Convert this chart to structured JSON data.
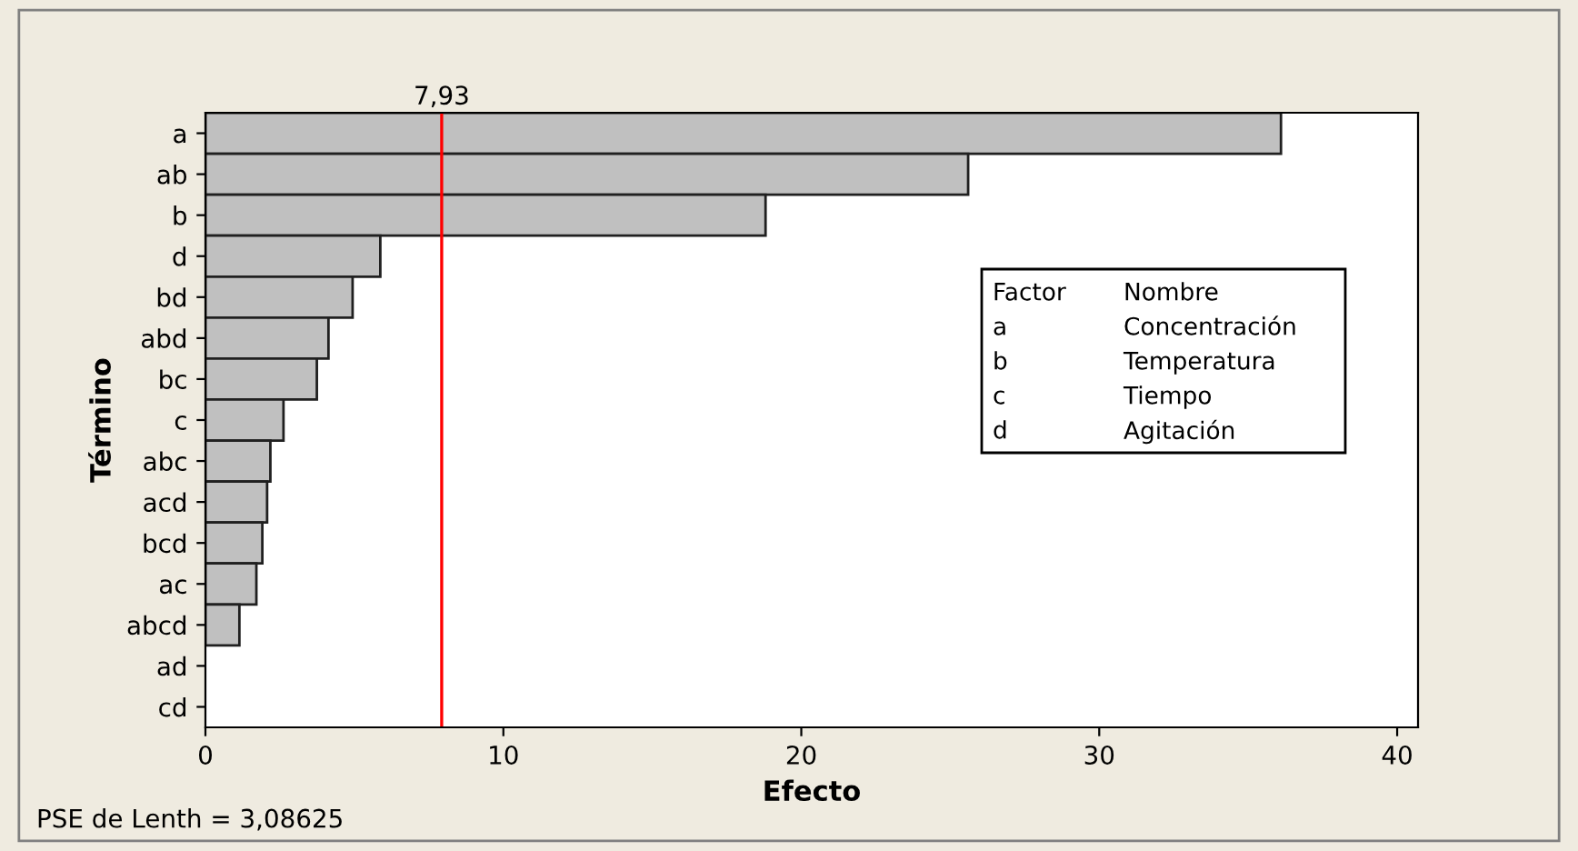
{
  "chart_data": {
    "type": "bar",
    "orientation": "horizontal",
    "xlabel": "Efecto",
    "ylabel": "Término",
    "categories": [
      "a",
      "ab",
      "b",
      "d",
      "bd",
      "abd",
      "bc",
      "c",
      "abc",
      "acd",
      "bcd",
      "ac",
      "abcd",
      "ad",
      "cd"
    ],
    "values": [
      36.1,
      25.6,
      18.8,
      5.87,
      4.94,
      4.13,
      3.74,
      2.62,
      2.18,
      2.07,
      1.91,
      1.71,
      1.14,
      0,
      0
    ],
    "color": "#c0c0c0",
    "xlim": [
      0,
      40.7
    ],
    "xticks": [
      0,
      10,
      20,
      30,
      40
    ],
    "ref_lines": [
      {
        "axis": "x",
        "value": 7.93,
        "label": "7,93",
        "color": "#ff0000"
      }
    ],
    "annotations": [
      "PSE de Lenth = 3,08625",
      "Factor",
      "Nombre",
      "a",
      "Concentración",
      "b",
      "Temperatura",
      "c",
      "Tiempo",
      "d",
      "Agitación"
    ],
    "grid": false
  }
}
